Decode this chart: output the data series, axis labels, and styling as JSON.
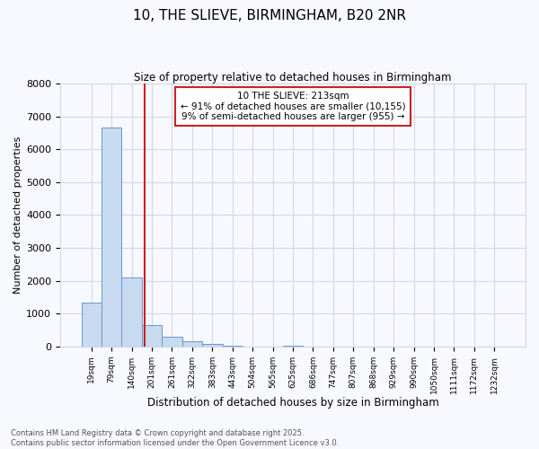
{
  "title": "10, THE SLIEVE, BIRMINGHAM, B20 2NR",
  "subtitle": "Size of property relative to detached houses in Birmingham",
  "xlabel": "Distribution of detached houses by size in Birmingham",
  "ylabel": "Number of detached properties",
  "categories": [
    "19sqm",
    "79sqm",
    "140sqm",
    "201sqm",
    "261sqm",
    "322sqm",
    "383sqm",
    "443sqm",
    "504sqm",
    "565sqm",
    "625sqm",
    "686sqm",
    "747sqm",
    "807sqm",
    "868sqm",
    "929sqm",
    "990sqm",
    "1050sqm",
    "1111sqm",
    "1172sqm",
    "1232sqm"
  ],
  "values": [
    1350,
    6650,
    2100,
    650,
    300,
    150,
    80,
    30,
    0,
    0,
    30,
    0,
    0,
    0,
    0,
    0,
    0,
    0,
    0,
    0,
    0
  ],
  "bar_color": "#c8daf0",
  "bar_edge_color": "#6699cc",
  "red_line_x": 2.62,
  "annotation_title": "10 THE SLIEVE: 213sqm",
  "annotation_line1": "← 91% of detached houses are smaller (10,155)",
  "annotation_line2": "9% of semi-detached houses are larger (955) →",
  "annotation_box_facecolor": "#ffffff",
  "annotation_box_edgecolor": "#cc2222",
  "red_line_color": "#cc2222",
  "ylim": [
    0,
    8000
  ],
  "yticks": [
    0,
    1000,
    2000,
    3000,
    4000,
    5000,
    6000,
    7000,
    8000
  ],
  "footer1": "Contains HM Land Registry data © Crown copyright and database right 2025.",
  "footer2": "Contains public sector information licensed under the Open Government Licence v3.0.",
  "bg_color": "#f8f8ff",
  "grid_color": "#d0d8e8"
}
